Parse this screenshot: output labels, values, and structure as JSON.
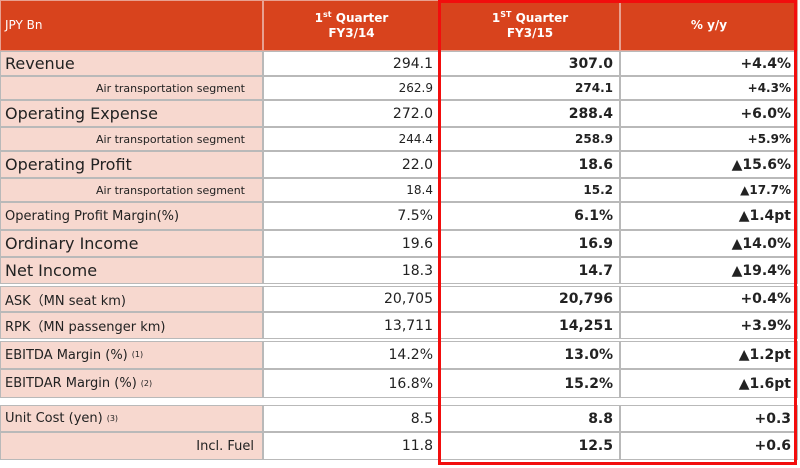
{
  "table": {
    "header": {
      "label": "JPY Bn",
      "columns": [
        {
          "num": "1",
          "sup": "st",
          "rest": " Quarter",
          "line2": "FY3/14"
        },
        {
          "num": "1",
          "sup": "ST",
          "rest": " Quarter",
          "line2": "FY3/15"
        },
        {
          "rest": "% y/y"
        }
      ]
    },
    "rows": [
      {
        "label": "Revenue",
        "values": [
          "294.1",
          "307.0",
          "+4.4%"
        ]
      },
      {
        "label": "Air transportation segment",
        "values": [
          "262.9",
          "274.1",
          "+4.3%"
        ]
      },
      {
        "label": "Operating Expense",
        "values": [
          "272.0",
          "288.4",
          "+6.0%"
        ]
      },
      {
        "label": "Air transportation segment",
        "values": [
          "244.4",
          "258.9",
          "+5.9%"
        ]
      },
      {
        "label": "Operating Profit",
        "values": [
          "22.0",
          "18.6",
          "▲15.6%"
        ]
      },
      {
        "label": "Air transportation segment",
        "values": [
          "18.4",
          "15.2",
          "▲17.7%"
        ]
      },
      {
        "label": "Operating Profit Margin(%)",
        "values": [
          "7.5%",
          "6.1%",
          "▲1.4pt"
        ]
      },
      {
        "label": "Ordinary Income",
        "values": [
          "19.6",
          "16.9",
          "▲14.0%"
        ]
      },
      {
        "label": "Net Income",
        "values": [
          "18.3",
          "14.7",
          "▲19.4%"
        ]
      },
      {
        "label": "ASK（MN seat km)",
        "values": [
          "20,705",
          "20,796",
          "+0.4%"
        ]
      },
      {
        "label": "RPK（MN passenger km)",
        "values": [
          "13,711",
          "14,251",
          "+3.9%"
        ]
      },
      {
        "label": "EBITDA Margin (%)",
        "note": "(1)",
        "values": [
          "14.2%",
          "13.0%",
          "▲1.2pt"
        ]
      },
      {
        "label": "EBITDAR Margin (%)",
        "note": "(2)",
        "values": [
          "16.8%",
          "15.2%",
          "▲1.6pt"
        ]
      },
      {
        "label": "Unit Cost (yen)",
        "note": "(3)",
        "values": [
          "8.5",
          "8.8",
          "+0.3"
        ]
      },
      {
        "label": "Incl. Fuel",
        "values": [
          "11.8",
          "12.5",
          "+0.6"
        ]
      }
    ]
  }
}
